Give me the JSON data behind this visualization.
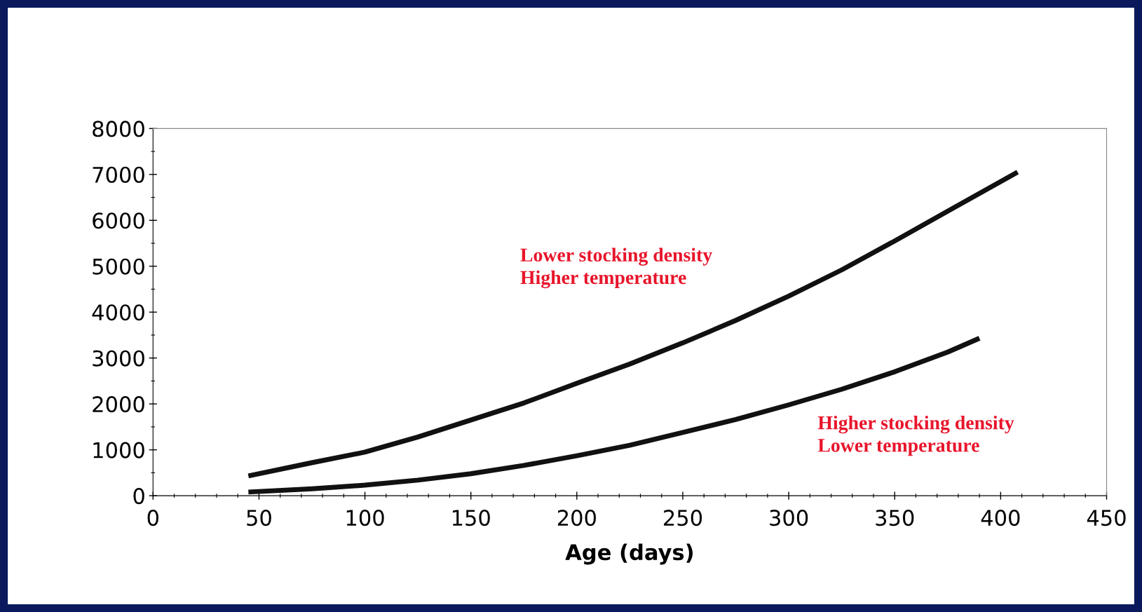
{
  "chart_data": {
    "type": "line",
    "xlabel": "Age (days)",
    "xlim": [
      0,
      450
    ],
    "xticks": [
      0,
      50,
      100,
      150,
      200,
      250,
      300,
      350,
      400,
      450
    ],
    "ylim": [
      0,
      8000
    ],
    "yticks": [
      0,
      1000,
      2000,
      3000,
      4000,
      5000,
      6000,
      7000,
      8000
    ],
    "grid": false,
    "legend": false,
    "marker": "none",
    "line_style": "solid",
    "series": [
      {
        "color": "#111111",
        "x": [
          45,
          75,
          100,
          125,
          150,
          175,
          200,
          225,
          250,
          275,
          300,
          325,
          350,
          375,
          408
        ],
        "values": [
          430,
          720,
          950,
          1280,
          1650,
          2020,
          2450,
          2870,
          3330,
          3820,
          4350,
          4920,
          5550,
          6200,
          7050
        ]
      },
      {
        "color": "#111111",
        "x": [
          45,
          75,
          100,
          125,
          150,
          175,
          200,
          225,
          250,
          275,
          300,
          325,
          350,
          375,
          390
        ],
        "values": [
          80,
          150,
          230,
          340,
          480,
          660,
          870,
          1100,
          1380,
          1660,
          1980,
          2320,
          2700,
          3130,
          3430
        ]
      }
    ],
    "annotations": [
      "Lower stocking density\nHigher temperature",
      "Higher stocking density\nLower temperature"
    ]
  }
}
